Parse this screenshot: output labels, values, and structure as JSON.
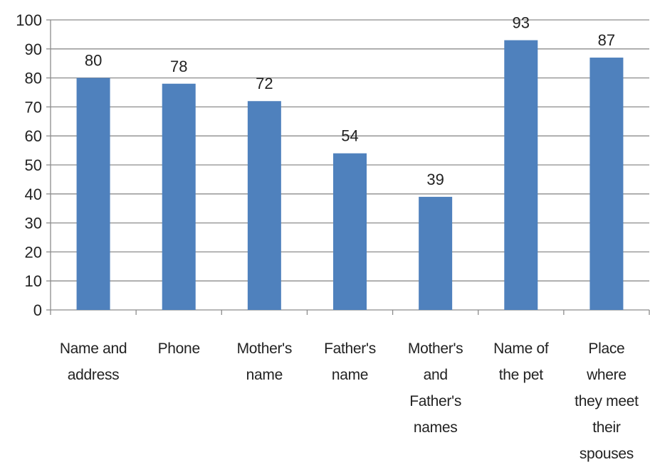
{
  "chart_data": {
    "type": "bar",
    "title": "",
    "xlabel": "",
    "ylabel": "",
    "categories": [
      [
        "Name and",
        "address"
      ],
      [
        "Phone"
      ],
      [
        "Mother's",
        "name"
      ],
      [
        "Father's",
        "name"
      ],
      [
        "Mother's",
        "and",
        "Father's",
        "names"
      ],
      [
        "Name of",
        "the pet"
      ],
      [
        "Place",
        "where",
        "they meet",
        "their",
        "spouses"
      ]
    ],
    "values": [
      80,
      78,
      72,
      54,
      39,
      93,
      87
    ],
    "ylim": [
      0,
      100
    ],
    "yticks": [
      0,
      10,
      20,
      30,
      40,
      50,
      60,
      70,
      80,
      90,
      100
    ],
    "grid": true,
    "legend": "none",
    "colors": {
      "bar": "#4f81bd",
      "grid": "#8c8c8c",
      "axis": "#8c8c8c",
      "text": "#222222"
    }
  }
}
